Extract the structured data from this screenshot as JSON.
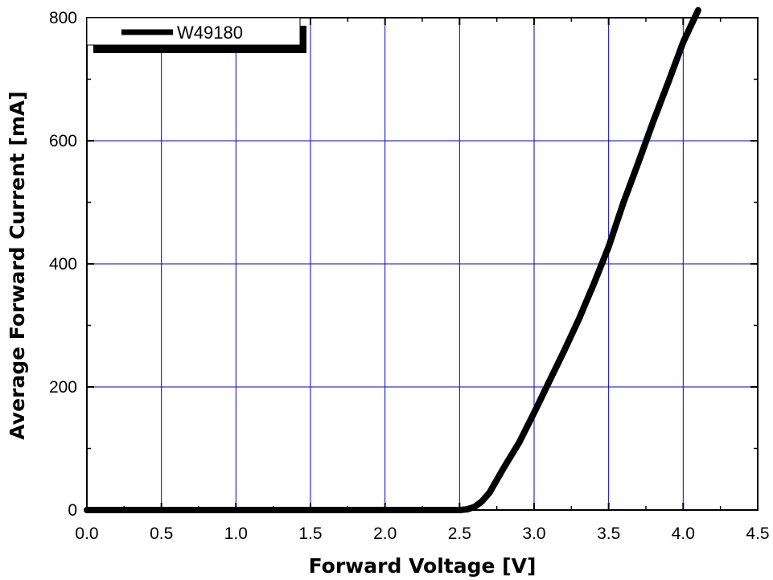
{
  "chart_data": {
    "type": "line",
    "xlabel": "Forward Voltage [V]",
    "ylabel": "Average Forward Current [mA]",
    "xlim": [
      0,
      4.5
    ],
    "ylim": [
      0,
      800
    ],
    "xticks": [
      "0.0",
      "0.5",
      "1.0",
      "1.5",
      "2.0",
      "2.5",
      "3.0",
      "3.5",
      "4.0",
      "4.5"
    ],
    "yticks": [
      "0",
      "200",
      "400",
      "600",
      "800"
    ],
    "grid": true,
    "grid_color": "#0000cc",
    "legend_position": "top-left",
    "series": [
      {
        "name": "W49180",
        "color": "#000000",
        "x": [
          0.0,
          0.5,
          1.0,
          1.5,
          2.0,
          2.5,
          2.55,
          2.6,
          2.65,
          2.7,
          2.8,
          2.9,
          3.0,
          3.1,
          3.2,
          3.3,
          3.4,
          3.5,
          3.6,
          3.7,
          3.8,
          3.9,
          4.0,
          4.1
        ],
        "y": [
          0,
          0,
          0,
          0,
          0,
          0,
          1,
          5,
          14,
          28,
          70,
          110,
          158,
          208,
          258,
          310,
          367,
          428,
          500,
          565,
          632,
          695,
          760,
          812
        ]
      }
    ]
  }
}
